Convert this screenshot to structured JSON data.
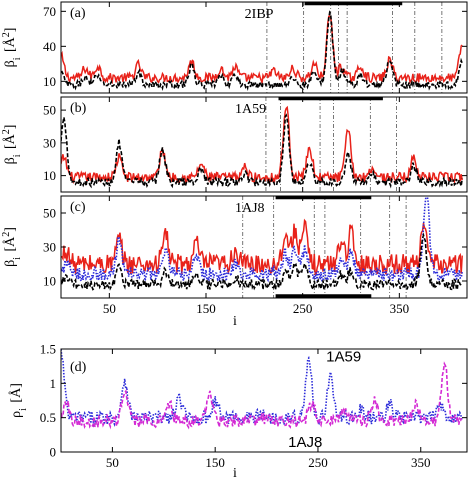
{
  "figure": {
    "colors": {
      "red": "#e8221a",
      "black": "#000000",
      "blue": "#2b2bd9",
      "magenta": "#d42bd4"
    }
  },
  "chart_data": [
    {
      "type": "line",
      "panel_label": "(a)",
      "title": "2IBP",
      "ylabel_main": "β",
      "ylabel_sub": "i",
      "ylabel_unit": "[Å",
      "ylabel_sup": "2",
      "ylabel_close": "]",
      "xlim": [
        0,
        420
      ],
      "ylim": [
        0,
        78
      ],
      "yticks": [
        10,
        40,
        70
      ],
      "ytick_labels": [
        "10",
        "40",
        "70"
      ],
      "xticks": [
        50,
        150,
        250,
        350
      ],
      "dashed_vlines": [
        213,
        251,
        279,
        287,
        296,
        343,
        366,
        394
      ],
      "bars": [
        [
          252,
          353
        ]
      ],
      "series": [
        {
          "color": "#e8221a",
          "style": "solid",
          "base": 13,
          "noise": 4,
          "peaks": [
            [
              0,
              18
            ],
            [
              25,
              8
            ],
            [
              38,
              10
            ],
            [
              80,
              11
            ],
            [
              135,
              14
            ],
            [
              165,
              8
            ],
            [
              180,
              9
            ],
            [
              220,
              6
            ],
            [
              240,
              8
            ],
            [
              262,
              12
            ],
            [
              278,
              54
            ],
            [
              290,
              10
            ],
            [
              310,
              10
            ],
            [
              340,
              15
            ],
            [
              415,
              28
            ]
          ]
        },
        {
          "color": "#000000",
          "style": "dashed",
          "base": 7,
          "noise": 3,
          "peaks": [
            [
              0,
              10
            ],
            [
              25,
              6
            ],
            [
              38,
              8
            ],
            [
              80,
              10
            ],
            [
              135,
              16
            ],
            [
              165,
              7
            ],
            [
              180,
              8
            ],
            [
              240,
              6
            ],
            [
              262,
              10
            ],
            [
              278,
              62
            ],
            [
              291,
              12
            ],
            [
              310,
              8
            ],
            [
              340,
              20
            ],
            [
              415,
              20
            ]
          ]
        }
      ]
    },
    {
      "type": "line",
      "panel_label": "(b)",
      "title": "1A59",
      "ylabel_main": "β",
      "ylabel_sub": "i",
      "ylabel_unit": "[Å",
      "ylabel_sup": "2",
      "ylabel_close": "]",
      "xlim": [
        0,
        420
      ],
      "ylim": [
        0,
        58
      ],
      "yticks": [
        10,
        30,
        50
      ],
      "ytick_labels": [
        "10",
        "30",
        "50"
      ],
      "xticks": [
        50,
        150,
        250,
        350
      ],
      "dashed_vlines": [
        212,
        227,
        268,
        282,
        320,
        347
      ],
      "bars": [
        [
          225,
          333
        ]
      ],
      "series": [
        {
          "color": "#e8221a",
          "style": "solid",
          "base": 9,
          "noise": 3,
          "peaks": [
            [
              3,
              12
            ],
            [
              60,
              12
            ],
            [
              105,
              16
            ],
            [
              145,
              8
            ],
            [
              190,
              6
            ],
            [
              233,
              44
            ],
            [
              257,
              18
            ],
            [
              297,
              28
            ],
            [
              322,
              6
            ],
            [
              365,
              12
            ]
          ]
        },
        {
          "color": "#000000",
          "style": "dashed",
          "base": 6,
          "noise": 2.5,
          "peaks": [
            [
              3,
              40
            ],
            [
              60,
              24
            ],
            [
              105,
              20
            ],
            [
              145,
              8
            ],
            [
              190,
              5
            ],
            [
              233,
              40
            ],
            [
              257,
              12
            ],
            [
              297,
              16
            ],
            [
              322,
              4
            ],
            [
              365,
              10
            ]
          ]
        }
      ]
    },
    {
      "type": "line",
      "panel_label": "(c)",
      "title": "1AJ8",
      "ylabel_main": "β",
      "ylabel_sub": "i",
      "ylabel_unit": "[Å",
      "ylabel_sup": "2",
      "ylabel_close": "]",
      "xlim": [
        0,
        420
      ],
      "ylim": [
        0,
        60
      ],
      "yticks": [
        10,
        30,
        50
      ],
      "ytick_labels": [
        "10",
        "30",
        "50"
      ],
      "xticks": [
        50,
        150,
        250,
        350
      ],
      "dashed_vlines": [
        188,
        220,
        262,
        273,
        310,
        340,
        357
      ],
      "bars": [
        [
          222,
          321
        ],
        [
          222,
          321
        ]
      ],
      "series": [
        {
          "color": "#e8221a",
          "style": "solid",
          "base": 20,
          "noise": 6,
          "peaks": [
            [
              5,
              8
            ],
            [
              60,
              14
            ],
            [
              108,
              18
            ],
            [
              140,
              12
            ],
            [
              180,
              8
            ],
            [
              232,
              18
            ],
            [
              242,
              20
            ],
            [
              252,
              20
            ],
            [
              290,
              14
            ],
            [
              300,
              18
            ],
            [
              375,
              24
            ]
          ]
        },
        {
          "color": "#2b2bd9",
          "style": "dotted",
          "base": 14,
          "noise": 4,
          "peaks": [
            [
              5,
              6
            ],
            [
              60,
              20
            ],
            [
              108,
              14
            ],
            [
              140,
              10
            ],
            [
              180,
              6
            ],
            [
              232,
              12
            ],
            [
              242,
              14
            ],
            [
              252,
              14
            ],
            [
              290,
              10
            ],
            [
              300,
              12
            ],
            [
              378,
              48
            ]
          ]
        },
        {
          "color": "#000000",
          "style": "dashed",
          "base": 8,
          "noise": 3,
          "peaks": [
            [
              5,
              4
            ],
            [
              60,
              10
            ],
            [
              108,
              8
            ],
            [
              140,
              6
            ],
            [
              180,
              4
            ],
            [
              232,
              8
            ],
            [
              242,
              10
            ],
            [
              252,
              10
            ],
            [
              290,
              6
            ],
            [
              300,
              8
            ],
            [
              375,
              30
            ]
          ]
        }
      ]
    },
    {
      "type": "line",
      "panel_label": "(d)",
      "ylabel_main": "ρ",
      "ylabel_sub": "i",
      "ylabel_unit": "[Å]",
      "xlim": [
        0,
        395
      ],
      "ylim": [
        0,
        1.5
      ],
      "yticks": [
        0,
        0.5,
        1,
        1.5
      ],
      "ytick_labels": [
        "0",
        "0.5",
        "1",
        "1.5"
      ],
      "xticks": [
        50,
        150,
        250,
        350
      ],
      "annotations": [
        {
          "text": "1A59",
          "x": 258,
          "y": 1.32
        },
        {
          "text": "1AJ8",
          "x": 221,
          "y": 0.07
        }
      ],
      "series": [
        {
          "color": "#2b2bd9",
          "style": "dotted",
          "base": 0.5,
          "noise": 0.1,
          "peaks": [
            [
              0,
              0.95
            ],
            [
              62,
              0.55
            ],
            [
              115,
              0.28
            ],
            [
              150,
              0.25
            ],
            [
              195,
              0.05
            ],
            [
              241,
              0.82
            ],
            [
              262,
              0.6
            ],
            [
              292,
              0.12
            ],
            [
              320,
              0.18
            ],
            [
              370,
              0.2
            ]
          ]
        },
        {
          "color": "#d42bd4",
          "style": "dashed",
          "base": 0.45,
          "noise": 0.09,
          "peaks": [
            [
              5,
              0.3
            ],
            [
              62,
              0.4
            ],
            [
              105,
              0.25
            ],
            [
              145,
              0.35
            ],
            [
              195,
              0.05
            ],
            [
              244,
              0.25
            ],
            [
              275,
              0.22
            ],
            [
              305,
              0.28
            ],
            [
              345,
              0.22
            ],
            [
              373,
              0.85
            ]
          ]
        }
      ]
    }
  ],
  "xlabel": "i",
  "xtick_labels": [
    "50",
    "150",
    "250",
    "350"
  ]
}
